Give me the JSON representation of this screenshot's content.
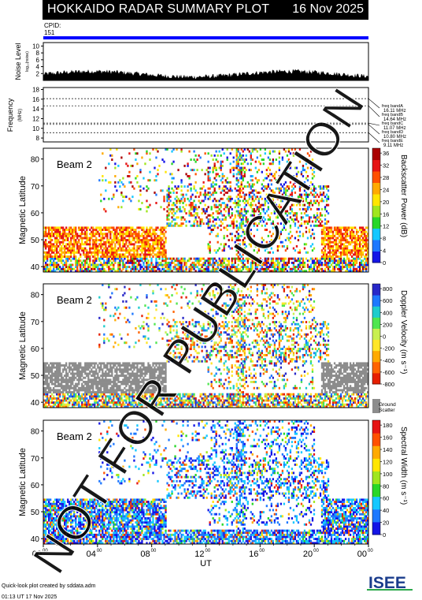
{
  "header": {
    "title": "HOKKAIDO RADAR SUMMARY PLOT",
    "date": "16 Nov 2025"
  },
  "cpid": {
    "label": "CPID:",
    "value": "151"
  },
  "noise_panel": {
    "ylabel": "Noise Level",
    "ylabel_sub": "log₁₀(noise)",
    "yticks": [
      "2",
      "4",
      "6",
      "8",
      "10"
    ]
  },
  "freq_panel": {
    "ylabel": "Frequency",
    "ylabel_sub": "(MHz)",
    "yticks": [
      "8",
      "10",
      "12",
      "14",
      "16",
      "18"
    ],
    "bands": [
      {
        "name": "freq bandA",
        "value": "16.11 MHz"
      },
      {
        "name": "freq bandB",
        "value": "14.64 MHz"
      },
      {
        "name": "freq bandC",
        "value": "11.07 MHz"
      },
      {
        "name": "freq bandD",
        "value": "10.80 MHz"
      },
      {
        "name": "freq bandE",
        "value": "9.11 MHz"
      }
    ]
  },
  "panels": [
    {
      "beam": "Beam  2",
      "ylabel": "Magnetic Latitude",
      "cbar_label": "Backscatter Power (dB)",
      "cbar_ticks": [
        "0",
        "4",
        "8",
        "12",
        "16",
        "20",
        "24",
        "28",
        "32",
        "36"
      ]
    },
    {
      "beam": "Beam  2",
      "ylabel": "Magnetic Latitude",
      "cbar_label": "Doppler Velocity (m s⁻¹)",
      "cbar_ticks": [
        "-800",
        "-600",
        "-400",
        "-200",
        "0",
        "200",
        "400",
        "600",
        "800"
      ],
      "ground_label_1": "Ground",
      "ground_label_2": "Scatter"
    },
    {
      "beam": "Beam  2",
      "ylabel": "Magnetic Latitude",
      "cbar_label": "Spectral Width (m s⁻¹)",
      "cbar_ticks": [
        "0",
        "20",
        "40",
        "60",
        "80",
        "100",
        "120",
        "140",
        "160",
        "180"
      ]
    }
  ],
  "lat_ticks": [
    "40",
    "50",
    "60",
    "70",
    "80"
  ],
  "x_axis": {
    "label": "UT",
    "ticks": [
      {
        "h": "00",
        "m": "00"
      },
      {
        "h": "04",
        "m": "00"
      },
      {
        "h": "08",
        "m": "00"
      },
      {
        "h": "12",
        "m": "00"
      },
      {
        "h": "16",
        "m": "00"
      },
      {
        "h": "20",
        "m": "00"
      },
      {
        "h": "00",
        "m": "00"
      }
    ]
  },
  "footer": {
    "credit_line1": "Quick-look plot created by sddata.adm",
    "credit_line2": "01:13 UT 17 Nov 2025",
    "logo_text": "ISEE"
  },
  "watermark": "NOT FOR PUBLICATION",
  "chart_data": {
    "type": "heatmap",
    "title": "HOKKAIDO RADAR SUMMARY PLOT",
    "x": {
      "label": "UT",
      "range_hours": [
        0,
        24
      ]
    },
    "y": {
      "label": "Magnetic Latitude",
      "range": [
        38,
        84
      ]
    },
    "colors": {
      "power": [
        "#1414e6",
        "#1e78ff",
        "#14c8ff",
        "#28d728",
        "#a0e61e",
        "#ffe600",
        "#ffaa00",
        "#ff5000",
        "#e61414",
        "#aa0000"
      ],
      "velocity": [
        "#e61e00",
        "#ff6400",
        "#ffaa00",
        "#ffe628",
        "#c8f050",
        "#50e650",
        "#1ecccc",
        "#1e78ff",
        "#2828c8"
      ],
      "width": [
        "#1414e6",
        "#1e78ff",
        "#14c8ff",
        "#28d728",
        "#a0e61e",
        "#ffe600",
        "#ffaa00",
        "#ff5000",
        "#e61414"
      ],
      "ground": "#8c8c8c"
    }
  }
}
